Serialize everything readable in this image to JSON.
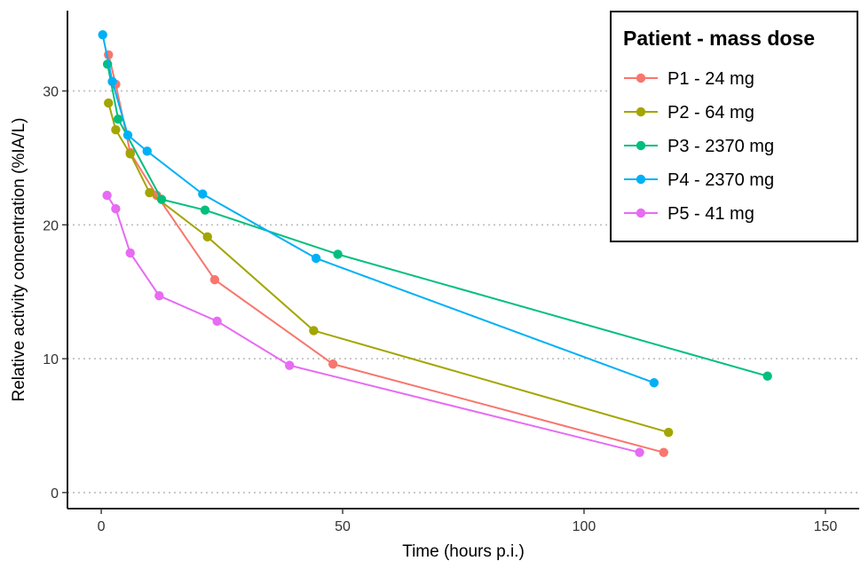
{
  "chart_data": {
    "type": "line",
    "title": "",
    "xlabel": "Time (hours p.i.)",
    "ylabel": "Relative activity concentration (%IA/L)",
    "xlim": [
      -7,
      157
    ],
    "ylim": [
      -1.2,
      36
    ],
    "xticks": [
      0,
      50,
      100,
      150
    ],
    "yticks": [
      0,
      10,
      20,
      30
    ],
    "grid": {
      "horizontal": true,
      "vertical": false,
      "style": "dotted"
    },
    "legend": {
      "title": "Patient - mass dose",
      "placement": "top-right"
    },
    "series": [
      {
        "name": "P1 - 24 mg",
        "color": "#F8766D",
        "points": [
          [
            1.5,
            32.7
          ],
          [
            3,
            30.5
          ],
          [
            6,
            25.4
          ],
          [
            11.5,
            22.2
          ],
          [
            23.5,
            15.9
          ],
          [
            48,
            9.6
          ],
          [
            116.5,
            3.0
          ]
        ]
      },
      {
        "name": "P2 - 64 mg",
        "color": "#A3A500",
        "points": [
          [
            1.5,
            29.1
          ],
          [
            3,
            27.1
          ],
          [
            6,
            25.3
          ],
          [
            10,
            22.4
          ],
          [
            22,
            19.1
          ],
          [
            44,
            12.1
          ],
          [
            117.5,
            4.5
          ]
        ]
      },
      {
        "name": "P3 - 2370 mg",
        "color": "#00BF7D",
        "points": [
          [
            1.3,
            32.0
          ],
          [
            3.5,
            27.9
          ],
          [
            12.5,
            21.9
          ],
          [
            21.5,
            21.1
          ],
          [
            49,
            17.8
          ],
          [
            138,
            8.7
          ]
        ]
      },
      {
        "name": "P4 - 2370 mg",
        "color": "#00B0F6",
        "points": [
          [
            0.3,
            34.2
          ],
          [
            2.3,
            30.7
          ],
          [
            5.5,
            26.7
          ],
          [
            9.5,
            25.5
          ],
          [
            21,
            22.3
          ],
          [
            44.5,
            17.5
          ],
          [
            114.5,
            8.2
          ]
        ]
      },
      {
        "name": "P5 - 41 mg",
        "color": "#E76BF3",
        "points": [
          [
            1.2,
            22.2
          ],
          [
            3,
            21.2
          ],
          [
            6,
            17.9
          ],
          [
            12,
            14.7
          ],
          [
            24,
            12.8
          ],
          [
            39,
            9.5
          ],
          [
            111.5,
            3.0
          ]
        ]
      }
    ]
  }
}
